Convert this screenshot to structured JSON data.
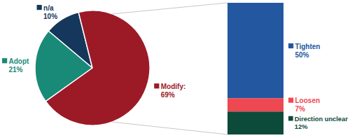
{
  "chart_data": [
    {
      "type": "pie",
      "categories": [
        "n/a",
        "Adopt",
        "Modify:"
      ],
      "values": [
        10,
        21,
        69
      ],
      "value_labels": [
        "10%",
        "21%",
        "69%"
      ],
      "colors": [
        "#15375c",
        "#1a8a78",
        "#9c1a26"
      ],
      "data_labels": true
    },
    {
      "type": "bar",
      "stacked": true,
      "categories": [
        "Tighten",
        "Loosen",
        "Direction unclear"
      ],
      "values": [
        50,
        7,
        12
      ],
      "value_labels": [
        "50%",
        "7%",
        "12%"
      ],
      "colors": [
        "#2358a1",
        "#ee4853",
        "#0c4a3a"
      ],
      "data_labels": true,
      "tick_labels": false
    }
  ]
}
